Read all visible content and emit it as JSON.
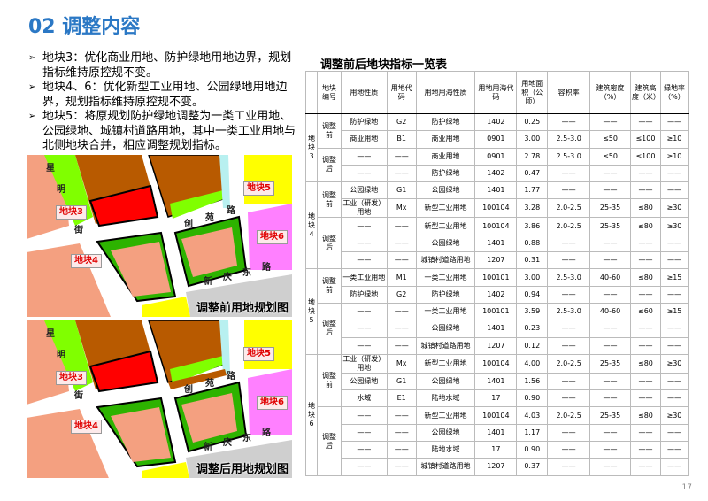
{
  "title": "02 调整内容",
  "bullets": [
    "地块3：优化商业用地、防护绿地用地边界，规划指标维持原控规不变。",
    "地块4、6：优化新型工业用地、公园绿地用地边界，规划指标维持原控规不变。",
    "地块5：将原规划防护绿地调整为一类工业用地、公园绿地、城镇村道路用地，其中一类工业用地与北侧地块合并，相应调整规划指标。"
  ],
  "maps": [
    {
      "caption": "调整前用地规划图",
      "labels": [
        "地块3",
        "地块4",
        "地块5",
        "地块6"
      ],
      "roads": [
        "星",
        "明",
        "街",
        "创",
        "苑",
        "路",
        "新",
        "庆",
        "东",
        "路"
      ]
    },
    {
      "caption": "调整后用地规划图",
      "labels": [
        "地块3",
        "地块4",
        "地块5",
        "地块6"
      ],
      "roads": [
        "星",
        "明",
        "街",
        "创",
        "苑",
        "路",
        "新",
        "庆",
        "东",
        "路"
      ]
    }
  ],
  "colors": {
    "title": "#2b78c5",
    "commercial": "#b85a00",
    "commercial_red": "#ff0000",
    "industrial": "#f4a080",
    "green": "#2db300",
    "light_green": "#80ff00",
    "water": "#b8f0f0",
    "pink": "#ff80ff",
    "yellow": "#ffff00",
    "label": "#e00000"
  },
  "table": {
    "title": "调整前后地块指标一览表",
    "headers": [
      "",
      "地块编号",
      "用地性质",
      "用地代码",
      "用地用海性质",
      "用地用海代码",
      "用地面积（公顷）",
      "容积率",
      "建筑密度（%）",
      "建筑高度（米）",
      "绿地率（%）"
    ],
    "blocks": [
      {
        "label": "地块3",
        "groups": [
          {
            "label": "调整前",
            "rows": [
              [
                "防护绿地",
                "G2",
                "防护绿地",
                "1402",
                "0.25",
                "——",
                "——",
                "——",
                "——"
              ],
              [
                "商业用地",
                "B1",
                "商业用地",
                "0901",
                "3.00",
                "2.5-3.0",
                "≤50",
                "≤100",
                "≥10"
              ]
            ]
          },
          {
            "label": "调整后",
            "rows": [
              [
                "——",
                "——",
                "商业用地",
                "0901",
                "2.78",
                "2.5-3.0",
                "≤50",
                "≤100",
                "≥10"
              ],
              [
                "——",
                "——",
                "防护绿地",
                "1402",
                "0.47",
                "——",
                "——",
                "——",
                "——"
              ]
            ]
          }
        ]
      },
      {
        "label": "地块4",
        "groups": [
          {
            "label": "调整前",
            "rows": [
              [
                "公园绿地",
                "G1",
                "公园绿地",
                "1401",
                "1.77",
                "——",
                "——",
                "——",
                "——"
              ],
              [
                "工业（研发）用地",
                "Mx",
                "新型工业用地",
                "100104",
                "3.28",
                "2.0-2.5",
                "25-35",
                "≤80",
                "≥30"
              ]
            ]
          },
          {
            "label": "调整后",
            "rows": [
              [
                "——",
                "——",
                "新型工业用地",
                "100104",
                "3.86",
                "2.0-2.5",
                "25-35",
                "≤80",
                "≥30"
              ],
              [
                "——",
                "——",
                "公园绿地",
                "1401",
                "0.88",
                "——",
                "——",
                "——",
                "——"
              ],
              [
                "——",
                "——",
                "城镇村道路用地",
                "1207",
                "0.31",
                "——",
                "——",
                "——",
                "——"
              ]
            ]
          }
        ]
      },
      {
        "label": "地块5",
        "groups": [
          {
            "label": "调整前",
            "rows": [
              [
                "一类工业用地",
                "M1",
                "一类工业用地",
                "100101",
                "3.00",
                "2.5-3.0",
                "40-60",
                "≤80",
                "≥15"
              ],
              [
                "防护绿地",
                "G2",
                "防护绿地",
                "1402",
                "0.94",
                "——",
                "——",
                "——",
                "——"
              ]
            ]
          },
          {
            "label": "调整后",
            "rows": [
              [
                "——",
                "——",
                "一类工业用地",
                "100101",
                "3.59",
                "2.5-3.0",
                "40-60",
                "≤60",
                "≥15"
              ],
              [
                "——",
                "——",
                "公园绿地",
                "1401",
                "0.23",
                "——",
                "——",
                "——",
                "——"
              ],
              [
                "——",
                "——",
                "城镇村道路用地",
                "1207",
                "0.12",
                "——",
                "——",
                "——",
                "——"
              ]
            ]
          }
        ]
      },
      {
        "label": "地块6",
        "groups": [
          {
            "label": "调整前",
            "rows": [
              [
                "工业（研发）用地",
                "Mx",
                "新型工业用地",
                "100104",
                "4.00",
                "2.0-2.5",
                "25-35",
                "≤80",
                "≥30"
              ],
              [
                "公园绿地",
                "G1",
                "公园绿地",
                "1401",
                "1.56",
                "——",
                "——",
                "——",
                "——"
              ],
              [
                "水域",
                "E1",
                "陆地水域",
                "17",
                "0.90",
                "——",
                "——",
                "——",
                "——"
              ]
            ]
          },
          {
            "label": "调整后",
            "rows": [
              [
                "——",
                "——",
                "新型工业用地",
                "100104",
                "4.03",
                "2.0-2.5",
                "25-35",
                "≤80",
                "≥30"
              ],
              [
                "——",
                "——",
                "公园绿地",
                "1401",
                "1.17",
                "——",
                "——",
                "——",
                "——"
              ],
              [
                "——",
                "——",
                "陆地水域",
                "17",
                "0.90",
                "——",
                "——",
                "——",
                "——"
              ],
              [
                "——",
                "——",
                "城镇村道路用地",
                "1207",
                "0.37",
                "——",
                "——",
                "——",
                "——"
              ]
            ]
          }
        ]
      }
    ]
  },
  "page_number": "17"
}
